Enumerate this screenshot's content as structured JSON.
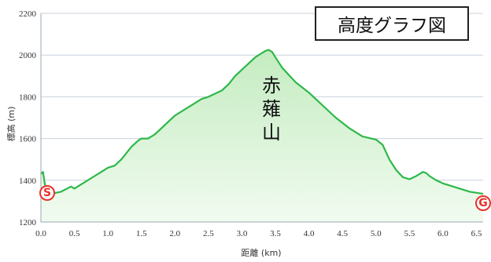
{
  "chart_data": {
    "type": "area",
    "title": "高度グラフ図",
    "mountain_label": "赤薙山",
    "xlabel": "距離 (km)",
    "ylabel": "標高 (m)",
    "xlim": [
      0.0,
      6.6
    ],
    "ylim": [
      1200,
      2200
    ],
    "x_ticks": [
      "0.0",
      "0.5",
      "1.0",
      "1.5",
      "2.0",
      "2.5",
      "3.0",
      "3.5",
      "4.0",
      "4.5",
      "5.0",
      "5.5",
      "6.0",
      "6.5"
    ],
    "y_ticks": [
      "1200",
      "1400",
      "1600",
      "1800",
      "2000",
      "2200"
    ],
    "grid": true,
    "colors": {
      "line": "#2db84a",
      "fill_top": "#c4ecc0",
      "fill_bottom": "#f1fbf0",
      "grid": "#c9d2db",
      "marker": "#e8312a"
    },
    "start_marker": "S",
    "goal_marker": "G",
    "series": [
      {
        "x": [
          0.0,
          0.03,
          0.06,
          0.1,
          0.15,
          0.3,
          0.45,
          0.5,
          0.6,
          0.7,
          0.8,
          0.9,
          1.0,
          1.1,
          1.2,
          1.35,
          1.45,
          1.5,
          1.6,
          1.7,
          1.8,
          1.9,
          2.0,
          2.1,
          2.2,
          2.3,
          2.4,
          2.5,
          2.6,
          2.7,
          2.8,
          2.9,
          3.0,
          3.1,
          3.2,
          3.3,
          3.35,
          3.4,
          3.45,
          3.5,
          3.6,
          3.8,
          4.0,
          4.2,
          4.4,
          4.6,
          4.8,
          5.0,
          5.1,
          5.2,
          5.3,
          5.4,
          5.5,
          5.6,
          5.7,
          5.75,
          5.8,
          5.9,
          6.0,
          6.2,
          6.4,
          6.6
        ],
        "y": [
          1430,
          1440,
          1380,
          1340,
          1335,
          1345,
          1370,
          1360,
          1380,
          1400,
          1420,
          1440,
          1460,
          1470,
          1500,
          1560,
          1590,
          1600,
          1600,
          1620,
          1650,
          1680,
          1710,
          1730,
          1750,
          1770,
          1790,
          1800,
          1815,
          1830,
          1860,
          1900,
          1930,
          1960,
          1990,
          2010,
          2020,
          2025,
          2015,
          1990,
          1940,
          1870,
          1820,
          1760,
          1700,
          1650,
          1610,
          1595,
          1570,
          1500,
          1450,
          1415,
          1405,
          1420,
          1440,
          1435,
          1420,
          1400,
          1385,
          1365,
          1345,
          1335
        ]
      }
    ]
  }
}
